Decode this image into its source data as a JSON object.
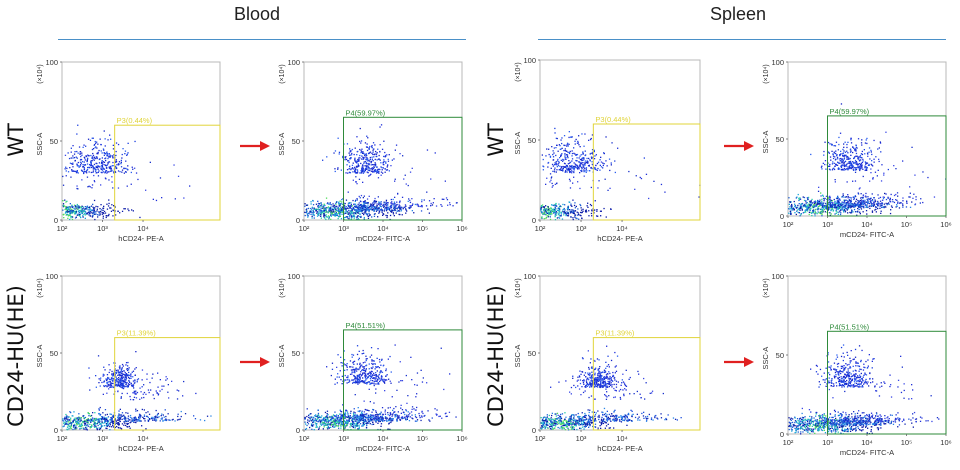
{
  "sections": [
    {
      "title": "Blood"
    },
    {
      "title": "Spleen"
    }
  ],
  "row_labels": [
    "WT",
    "CD24-HU(HE)"
  ],
  "colors": {
    "gate_yellow": "#e0d43a",
    "gate_green": "#2e8a3a",
    "arrow_red": "#e02020",
    "header_line": "#4a90c8"
  },
  "icons": [
    "right-arrow-icon"
  ],
  "chart_data": [
    {
      "id": "blood-wt-hcd24",
      "type": "scatter",
      "section": "Blood",
      "row": "WT",
      "xlabel": "hCD24- PE-A",
      "ylabel": "SSC-A",
      "yscale_label": "(×10⁴)",
      "x_ticks": [
        "10²",
        "10³",
        "10⁴"
      ],
      "x_log_range": [
        2,
        5.9
      ],
      "y_ticks": [
        "0",
        "50",
        "100"
      ],
      "ylim": [
        0,
        100
      ],
      "gate": {
        "label": "P3(0.44%)",
        "name": "P3",
        "percent": 0.44,
        "x_log": [
          3.3,
          5.9
        ],
        "y": [
          0,
          60
        ],
        "color": "yellow"
      }
    },
    {
      "id": "blood-wt-mcd24",
      "type": "scatter",
      "section": "Blood",
      "row": "WT",
      "xlabel": "mCD24- FITC-A",
      "ylabel": "SSC-A",
      "yscale_label": "(×10⁴)",
      "x_ticks": [
        "10²",
        "10³",
        "10⁴",
        "10⁵",
        "10⁶"
      ],
      "x_log_range": [
        2,
        6
      ],
      "y_ticks": [
        "0",
        "50",
        "100"
      ],
      "ylim": [
        0,
        100
      ],
      "gate": {
        "label": "P4(59.97%)",
        "name": "P4",
        "percent": 59.97,
        "x_log": [
          3.0,
          6.0
        ],
        "y": [
          0,
          65
        ],
        "color": "green"
      }
    },
    {
      "id": "spleen-wt-hcd24",
      "type": "scatter",
      "section": "Spleen",
      "row": "WT",
      "xlabel": "hCD24- PE-A",
      "ylabel": "SSC-A",
      "yscale_label": "(×10⁴)",
      "x_ticks": [
        "10²",
        "10³",
        "10⁴"
      ],
      "x_log_range": [
        2,
        5.9
      ],
      "y_ticks": [
        "0",
        "50",
        "100"
      ],
      "ylim": [
        0,
        100
      ],
      "gate": {
        "label": "P3(0.44%)",
        "name": "P3",
        "percent": 0.44,
        "x_log": [
          3.3,
          5.9
        ],
        "y": [
          0,
          60
        ],
        "color": "yellow"
      }
    },
    {
      "id": "spleen-wt-mcd24",
      "type": "scatter",
      "section": "Spleen",
      "row": "WT",
      "xlabel": "mCD24- FITC-A",
      "ylabel": "SSC-A",
      "yscale_label": "(×10⁴)",
      "x_ticks": [
        "10²",
        "10³",
        "10⁴",
        "10⁵",
        "10⁶"
      ],
      "x_log_range": [
        2,
        6
      ],
      "y_ticks": [
        "0",
        "50",
        "100"
      ],
      "ylim": [
        0,
        100
      ],
      "gate": {
        "label": "P4(59.97%)",
        "name": "P4",
        "percent": 59.97,
        "x_log": [
          3.0,
          6.0
        ],
        "y": [
          0,
          65
        ],
        "color": "green"
      }
    },
    {
      "id": "blood-hu-hcd24",
      "type": "scatter",
      "section": "Blood",
      "row": "CD24-HU(HE)",
      "xlabel": "hCD24- PE-A",
      "ylabel": "SSC-A",
      "yscale_label": "(×10⁴)",
      "x_ticks": [
        "10²",
        "10³",
        "10⁴"
      ],
      "x_log_range": [
        2,
        5.9
      ],
      "y_ticks": [
        "0",
        "50",
        "100"
      ],
      "ylim": [
        0,
        100
      ],
      "gate": {
        "label": "P3(11.39%)",
        "name": "P3",
        "percent": 11.39,
        "x_log": [
          3.3,
          5.9
        ],
        "y": [
          0,
          60
        ],
        "color": "yellow"
      }
    },
    {
      "id": "blood-hu-mcd24",
      "type": "scatter",
      "section": "Blood",
      "row": "CD24-HU(HE)",
      "xlabel": "mCD24- FITC-A",
      "ylabel": "SSC-A",
      "yscale_label": "(×10⁴)",
      "x_ticks": [
        "10²",
        "10³",
        "10⁴",
        "10⁵",
        "10⁶"
      ],
      "x_log_range": [
        2,
        6
      ],
      "y_ticks": [
        "0",
        "50",
        "100"
      ],
      "ylim": [
        0,
        100
      ],
      "gate": {
        "label": "P4(51.51%)",
        "name": "P4",
        "percent": 51.51,
        "x_log": [
          3.0,
          6.0
        ],
        "y": [
          0,
          65
        ],
        "color": "green"
      }
    },
    {
      "id": "spleen-hu-hcd24",
      "type": "scatter",
      "section": "Spleen",
      "row": "CD24-HU(HE)",
      "xlabel": "hCD24- PE-A",
      "ylabel": "SSC-A",
      "yscale_label": "(×10⁴)",
      "x_ticks": [
        "10²",
        "10³",
        "10⁴"
      ],
      "x_log_range": [
        2,
        5.9
      ],
      "y_ticks": [
        "0",
        "50",
        "100"
      ],
      "ylim": [
        0,
        100
      ],
      "gate": {
        "label": "P3(11.39%)",
        "name": "P3",
        "percent": 11.39,
        "x_log": [
          3.3,
          5.9
        ],
        "y": [
          0,
          60
        ],
        "color": "yellow"
      }
    },
    {
      "id": "spleen-hu-mcd24",
      "type": "scatter",
      "section": "Spleen",
      "row": "CD24-HU(HE)",
      "xlabel": "mCD24- FITC-A",
      "ylabel": "SSC-A",
      "yscale_label": "(×10⁴)",
      "x_ticks": [
        "10²",
        "10³",
        "10⁴",
        "10⁵",
        "10⁶"
      ],
      "x_log_range": [
        2,
        6
      ],
      "y_ticks": [
        "0",
        "50",
        "100"
      ],
      "ylim": [
        0,
        100
      ],
      "gate": {
        "label": "P4(51.51%)",
        "name": "P4",
        "percent": 51.51,
        "x_log": [
          3.0,
          6.0
        ],
        "y": [
          0,
          65
        ],
        "color": "green"
      }
    }
  ]
}
